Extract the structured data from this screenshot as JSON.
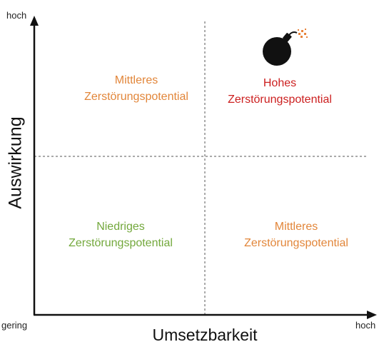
{
  "axes": {
    "y_title": "Auswirkung",
    "x_title": "Umsetzbarkeit",
    "y_high_label": "hoch",
    "origin_label": "gering",
    "x_high_label": "hoch"
  },
  "quadrants": {
    "top_left": {
      "line1": "Mittleres",
      "line2": "Zerstörungspotential",
      "color": "#e2863a"
    },
    "top_right": {
      "line1": "Hohes",
      "line2": "Zerstörungspotential",
      "color": "#cc1f1f",
      "icon": "bomb-icon"
    },
    "bottom_left": {
      "line1": "Niedriges",
      "line2": "Zerstörungspotential",
      "color": "#73a83c"
    },
    "bottom_right": {
      "line1": "Mittleres",
      "line2": "Zerstörungspotential",
      "color": "#e2863a"
    }
  },
  "colors": {
    "axis": "#111111",
    "divider": "#555555",
    "bomb": "#111111",
    "spark": "#e8833a"
  }
}
